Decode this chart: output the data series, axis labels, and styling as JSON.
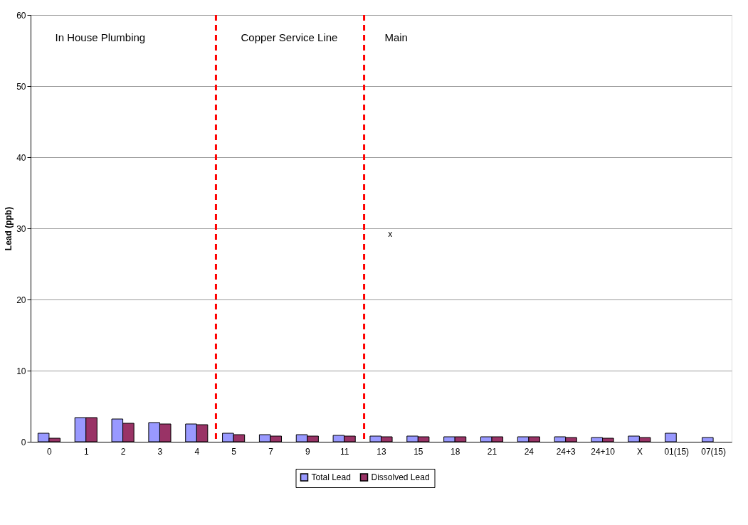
{
  "chart_data": {
    "type": "bar",
    "ylabel": "Lead (ppb)",
    "categories": [
      "0",
      "1",
      "2",
      "3",
      "4",
      "5",
      "7",
      "9",
      "11",
      "13",
      "15",
      "18",
      "21",
      "24",
      "24+3",
      "24+10",
      "X",
      "01(15)",
      "07(15)"
    ],
    "series": [
      {
        "name": "Total Lead",
        "color": "#9999ff",
        "values": [
          1.2,
          3.4,
          3.2,
          2.7,
          2.5,
          1.2,
          1.0,
          1.0,
          0.9,
          0.8,
          0.8,
          0.7,
          0.7,
          0.7,
          0.7,
          0.6,
          0.8,
          1.2,
          0.6
        ]
      },
      {
        "name": "Dissolved Lead",
        "color": "#993366",
        "values": [
          0.5,
          3.4,
          2.6,
          2.5,
          2.4,
          1.0,
          0.8,
          0.8,
          0.8,
          0.7,
          0.7,
          0.7,
          0.7,
          0.7,
          0.6,
          0.5,
          0.6,
          null,
          null
        ]
      }
    ],
    "ylim": [
      0,
      60
    ],
    "yticks": [
      0,
      10,
      20,
      30,
      40,
      50,
      60
    ],
    "grid": "y",
    "legend": "bottom",
    "annotations": [
      "In House Plumbing",
      "Copper Service Line",
      "Main",
      "x"
    ]
  }
}
